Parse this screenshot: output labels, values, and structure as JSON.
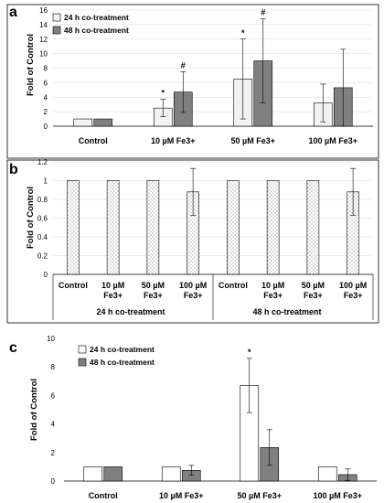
{
  "chart_data": [
    {
      "panel": "a",
      "type": "bar",
      "ylabel": "Fold of Control",
      "ylim": [
        0,
        16
      ],
      "yticks": [
        0,
        2,
        4,
        6,
        8,
        10,
        12,
        14,
        16
      ],
      "legend": "top-left",
      "categories": [
        "Control",
        "10 µM Fe3+",
        "50 µM Fe3+",
        "100 µM Fe3+"
      ],
      "series": [
        {
          "name": "24 h co-treatment",
          "color": "#f2f2f2",
          "values": [
            1.0,
            2.5,
            6.5,
            3.2
          ],
          "errors": [
            0,
            1.2,
            5.5,
            2.6
          ],
          "marks": [
            "",
            "*",
            "*",
            ""
          ]
        },
        {
          "name": "48 h co-treatment",
          "color": "#808080",
          "values": [
            1.0,
            4.7,
            9.0,
            5.3
          ],
          "errors": [
            0,
            2.8,
            5.8,
            5.3
          ],
          "marks": [
            "",
            "#",
            "#",
            ""
          ]
        }
      ]
    },
    {
      "panel": "b",
      "type": "bar",
      "ylabel": "Fold of Control",
      "ylim": [
        0,
        1.2
      ],
      "yticks": [
        "0",
        "0.2",
        "0.4",
        "0.6",
        "0.8",
        "1",
        "1.2"
      ],
      "pattern": "dotted",
      "categories": [
        "Control",
        "10 µM Fe3+",
        "50 µM Fe3+",
        "100 µM Fe3+",
        "Control",
        "10 µM Fe3+",
        "50 µM Fe3+",
        "100 µM Fe3+"
      ],
      "category_lines": [
        [
          "Control"
        ],
        [
          "10 µM",
          "Fe3+"
        ],
        [
          "50 µM",
          "Fe3+"
        ],
        [
          "100 µM",
          "Fe3+"
        ],
        [
          "Control"
        ],
        [
          "10 µM",
          "Fe3+"
        ],
        [
          "50 µM",
          "Fe3+"
        ],
        [
          "100 µM",
          "Fe3+"
        ]
      ],
      "groups": [
        "24 h co-treatment",
        "48 h co-treatment"
      ],
      "values": [
        1.0,
        1.0,
        1.0,
        0.88,
        1.0,
        1.0,
        1.0,
        0.88
      ],
      "errors": [
        0,
        0,
        0,
        0.25,
        0,
        0,
        0,
        0.25
      ]
    },
    {
      "panel": "c",
      "type": "bar",
      "ylabel": "Fold of Control",
      "ylim": [
        0,
        10
      ],
      "yticks": [
        0,
        2,
        4,
        6,
        8,
        10
      ],
      "legend": "top-left",
      "categories": [
        "Control",
        "10 µM Fe3+",
        "50 µM Fe3+",
        "100 µM Fe3+"
      ],
      "series": [
        {
          "name": "24 h co-treatment",
          "color": "#ffffff",
          "values": [
            1.0,
            1.0,
            6.7,
            1.0
          ],
          "errors": [
            0,
            0,
            1.9,
            0
          ],
          "marks": [
            "",
            "",
            "*",
            ""
          ]
        },
        {
          "name": "48 h co-treatment",
          "color": "#808080",
          "values": [
            1.0,
            0.75,
            2.35,
            0.45
          ],
          "errors": [
            0,
            0.35,
            1.25,
            0.4
          ],
          "marks": [
            "",
            "",
            "",
            ""
          ]
        }
      ]
    }
  ]
}
